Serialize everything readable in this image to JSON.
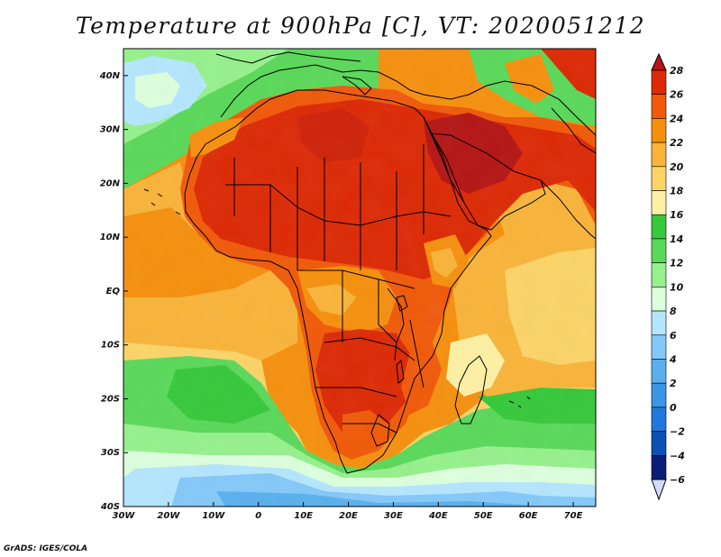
{
  "title": "Temperature at 900hPa [C], VT: 2020051212",
  "credit": "GrADS: IGES/COLA",
  "map": {
    "variable": "Temperature at 900hPa",
    "units": "C",
    "valid_time": "2020051212",
    "region": "Africa",
    "lon_range": [
      -30,
      75
    ],
    "lat_range": [
      -40,
      45
    ],
    "lat_ticks": [
      {
        "label": "40N",
        "value": 40
      },
      {
        "label": "30N",
        "value": 30
      },
      {
        "label": "20N",
        "value": 20
      },
      {
        "label": "10N",
        "value": 10
      },
      {
        "label": "EQ",
        "value": 0
      },
      {
        "label": "10S",
        "value": -10
      },
      {
        "label": "20S",
        "value": -20
      },
      {
        "label": "30S",
        "value": -30
      },
      {
        "label": "40S",
        "value": -40
      }
    ],
    "lon_ticks": [
      {
        "label": "30W",
        "value": -30
      },
      {
        "label": "20W",
        "value": -20
      },
      {
        "label": "10W",
        "value": -10
      },
      {
        "label": "0",
        "value": 0
      },
      {
        "label": "10E",
        "value": 10
      },
      {
        "label": "20E",
        "value": 20
      },
      {
        "label": "30E",
        "value": 30
      },
      {
        "label": "40E",
        "value": 40
      },
      {
        "label": "50E",
        "value": 50
      },
      {
        "label": "60E",
        "value": 60
      },
      {
        "label": "70E",
        "value": 70
      }
    ]
  },
  "colorbar": {
    "levels": [
      {
        "label": "28",
        "value": 28
      },
      {
        "label": "26",
        "value": 26
      },
      {
        "label": "24",
        "value": 24
      },
      {
        "label": "22",
        "value": 22
      },
      {
        "label": "20",
        "value": 20
      },
      {
        "label": "18",
        "value": 18
      },
      {
        "label": "16",
        "value": 16
      },
      {
        "label": "14",
        "value": 14
      },
      {
        "label": "12",
        "value": 12
      },
      {
        "label": "10",
        "value": 10
      },
      {
        "label": "8",
        "value": 8
      },
      {
        "label": "6",
        "value": 6
      },
      {
        "label": "4",
        "value": 4
      },
      {
        "label": "2",
        "value": 2
      },
      {
        "label": "0",
        "value": 0
      },
      {
        "label": "−2",
        "value": -2
      },
      {
        "label": "−4",
        "value": -4
      },
      {
        "label": "−6",
        "value": -6
      }
    ],
    "colors": [
      "#b41616",
      "#dc2a06",
      "#f05a0a",
      "#f5900f",
      "#f8b43a",
      "#fbd468",
      "#fdf0a4",
      "#37c83c",
      "#5ad85a",
      "#96f08c",
      "#dcffdc",
      "#b4e6ff",
      "#84c8f8",
      "#5ab0ec",
      "#3c96e6",
      "#2078dc",
      "#0c50b4",
      "#0a1e78",
      "#d2dcff"
    ]
  }
}
